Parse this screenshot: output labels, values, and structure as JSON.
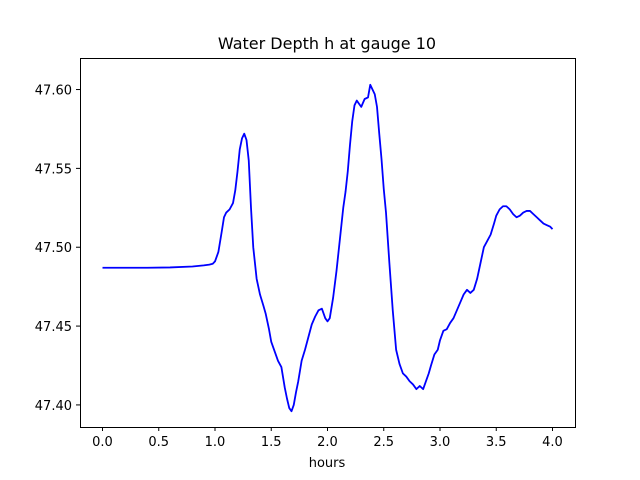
{
  "chart_data": {
    "type": "line",
    "title": "Water Depth h at gauge 10",
    "xlabel": "hours",
    "ylabel": "",
    "xlim": [
      -0.2,
      4.2
    ],
    "ylim": [
      47.386,
      47.62
    ],
    "xticks": [
      0.0,
      0.5,
      1.0,
      1.5,
      2.0,
      2.5,
      3.0,
      3.5,
      4.0
    ],
    "xtick_labels": [
      "0.0",
      "0.5",
      "1.0",
      "1.5",
      "2.0",
      "2.5",
      "3.0",
      "3.5",
      "4.0"
    ],
    "yticks": [
      47.4,
      47.45,
      47.5,
      47.55,
      47.6
    ],
    "ytick_labels": [
      "47.40",
      "47.45",
      "47.50",
      "47.55",
      "47.60"
    ],
    "grid": false,
    "series": [
      {
        "color": "#0000ff",
        "x": [
          0.0,
          0.2,
          0.4,
          0.6,
          0.8,
          0.9,
          0.95,
          0.98,
          1.0,
          1.03,
          1.06,
          1.08,
          1.1,
          1.13,
          1.16,
          1.18,
          1.2,
          1.22,
          1.24,
          1.26,
          1.28,
          1.3,
          1.32,
          1.34,
          1.37,
          1.4,
          1.43,
          1.45,
          1.48,
          1.5,
          1.53,
          1.56,
          1.59,
          1.62,
          1.64,
          1.66,
          1.68,
          1.7,
          1.72,
          1.74,
          1.77,
          1.8,
          1.83,
          1.86,
          1.89,
          1.92,
          1.95,
          1.98,
          2.0,
          2.02,
          2.05,
          2.08,
          2.11,
          2.14,
          2.16,
          2.18,
          2.2,
          2.22,
          2.24,
          2.26,
          2.28,
          2.3,
          2.33,
          2.36,
          2.38,
          2.4,
          2.42,
          2.44,
          2.46,
          2.48,
          2.5,
          2.52,
          2.55,
          2.58,
          2.61,
          2.64,
          2.67,
          2.7,
          2.73,
          2.76,
          2.79,
          2.82,
          2.85,
          2.88,
          2.9,
          2.92,
          2.95,
          2.98,
          3.0,
          3.03,
          3.06,
          3.09,
          3.12,
          3.15,
          3.18,
          3.21,
          3.24,
          3.27,
          3.3,
          3.33,
          3.36,
          3.39,
          3.42,
          3.45,
          3.48,
          3.5,
          3.53,
          3.56,
          3.59,
          3.62,
          3.65,
          3.68,
          3.71,
          3.74,
          3.77,
          3.8,
          3.83,
          3.86,
          3.89,
          3.92,
          3.95,
          3.98,
          4.0
        ],
        "y": [
          47.487,
          47.487,
          47.487,
          47.4872,
          47.4878,
          47.4885,
          47.489,
          47.4895,
          47.491,
          47.497,
          47.51,
          47.519,
          47.522,
          47.524,
          47.528,
          47.536,
          47.548,
          47.562,
          47.569,
          47.572,
          47.568,
          47.555,
          47.525,
          47.5,
          47.48,
          47.47,
          47.463,
          47.458,
          47.448,
          47.44,
          47.434,
          47.428,
          47.424,
          47.411,
          47.404,
          47.398,
          47.396,
          47.4,
          47.408,
          47.415,
          47.428,
          47.435,
          47.443,
          47.451,
          47.456,
          47.46,
          47.461,
          47.455,
          47.453,
          47.455,
          47.468,
          47.485,
          47.505,
          47.525,
          47.535,
          47.548,
          47.565,
          47.58,
          47.59,
          47.593,
          47.591,
          47.589,
          47.594,
          47.595,
          47.603,
          47.6,
          47.597,
          47.589,
          47.572,
          47.556,
          47.537,
          47.522,
          47.49,
          47.46,
          47.435,
          47.426,
          47.42,
          47.418,
          47.415,
          47.413,
          47.41,
          47.412,
          47.41,
          47.416,
          47.42,
          47.425,
          47.432,
          47.435,
          47.441,
          47.447,
          47.448,
          47.452,
          47.455,
          47.46,
          47.465,
          47.47,
          47.473,
          47.471,
          47.473,
          47.48,
          47.49,
          47.5,
          47.504,
          47.508,
          47.515,
          47.52,
          47.524,
          47.526,
          47.526,
          47.524,
          47.521,
          47.519,
          47.52,
          47.522,
          47.523,
          47.523,
          47.521,
          47.519,
          47.517,
          47.515,
          47.514,
          47.513,
          47.5115
        ]
      }
    ]
  }
}
